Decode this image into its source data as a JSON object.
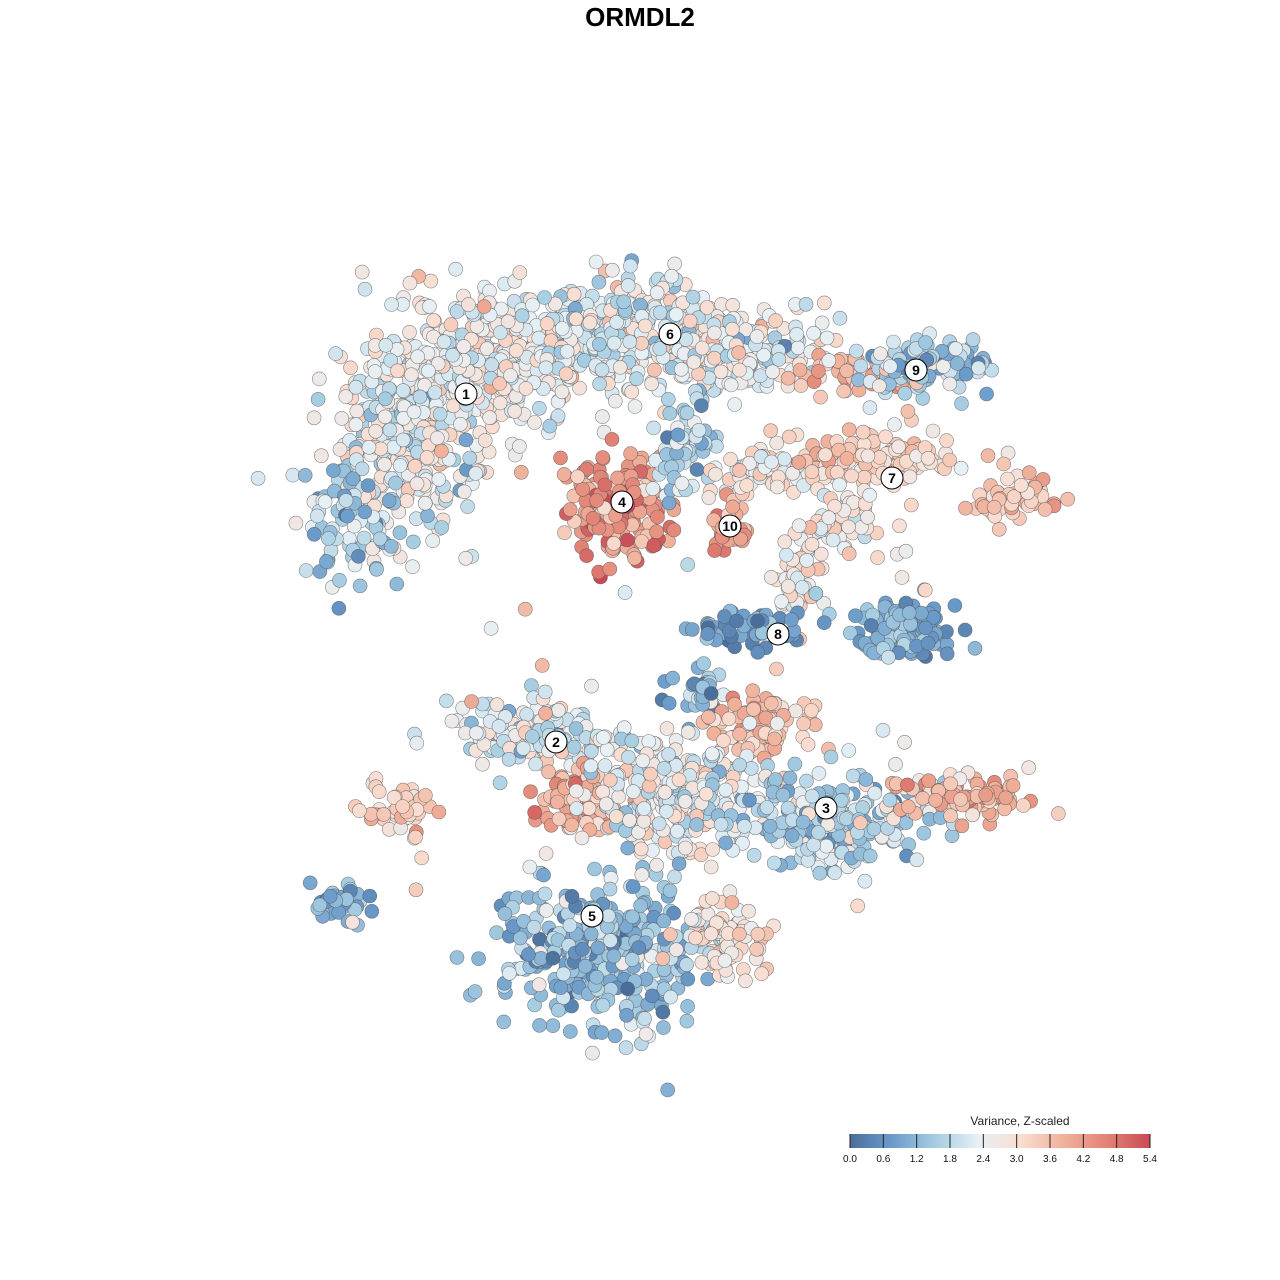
{
  "chart_data": {
    "type": "scatter",
    "title": "ORMDL2",
    "legend": {
      "title": "Variance, Z-scaled",
      "position": "bottom-right",
      "ticks": [
        "0.0",
        "0.6",
        "1.2",
        "1.8",
        "2.4",
        "3.0",
        "3.6",
        "4.2",
        "4.8",
        "5.4"
      ],
      "range": [
        0,
        5.4
      ]
    },
    "color_scale": [
      "#4a6e9b",
      "#6b9ccb",
      "#a6cde2",
      "#e7f0f5",
      "#f9ddd0",
      "#f0b09a",
      "#e28375",
      "#c94a55"
    ],
    "xlim": [
      -40,
      40
    ],
    "ylim": [
      -40,
      40
    ],
    "grid": false,
    "axes_visible": false,
    "clusters": [
      {
        "label": "1",
        "x": -14.5,
        "y": 20.5,
        "mean": 2.5
      },
      {
        "label": "2",
        "x": -7.0,
        "y": -8.5,
        "mean": 2.2
      },
      {
        "label": "3",
        "x": 15.5,
        "y": -14.0,
        "mean": 2.2
      },
      {
        "label": "4",
        "x": -1.5,
        "y": 11.5,
        "mean": 4.3
      },
      {
        "label": "5",
        "x": -4.0,
        "y": -23.0,
        "mean": 1.5
      },
      {
        "label": "6",
        "x": 2.5,
        "y": 25.5,
        "mean": 2.4
      },
      {
        "label": "7",
        "x": 21.0,
        "y": 13.5,
        "mean": 3.1
      },
      {
        "label": "8",
        "x": 11.5,
        "y": 0.5,
        "mean": 1.0
      },
      {
        "label": "9",
        "x": 23.0,
        "y": 22.5,
        "mean": 1.6
      },
      {
        "label": "10",
        "x": 7.5,
        "y": 9.5,
        "mean": 4.2
      }
    ]
  }
}
